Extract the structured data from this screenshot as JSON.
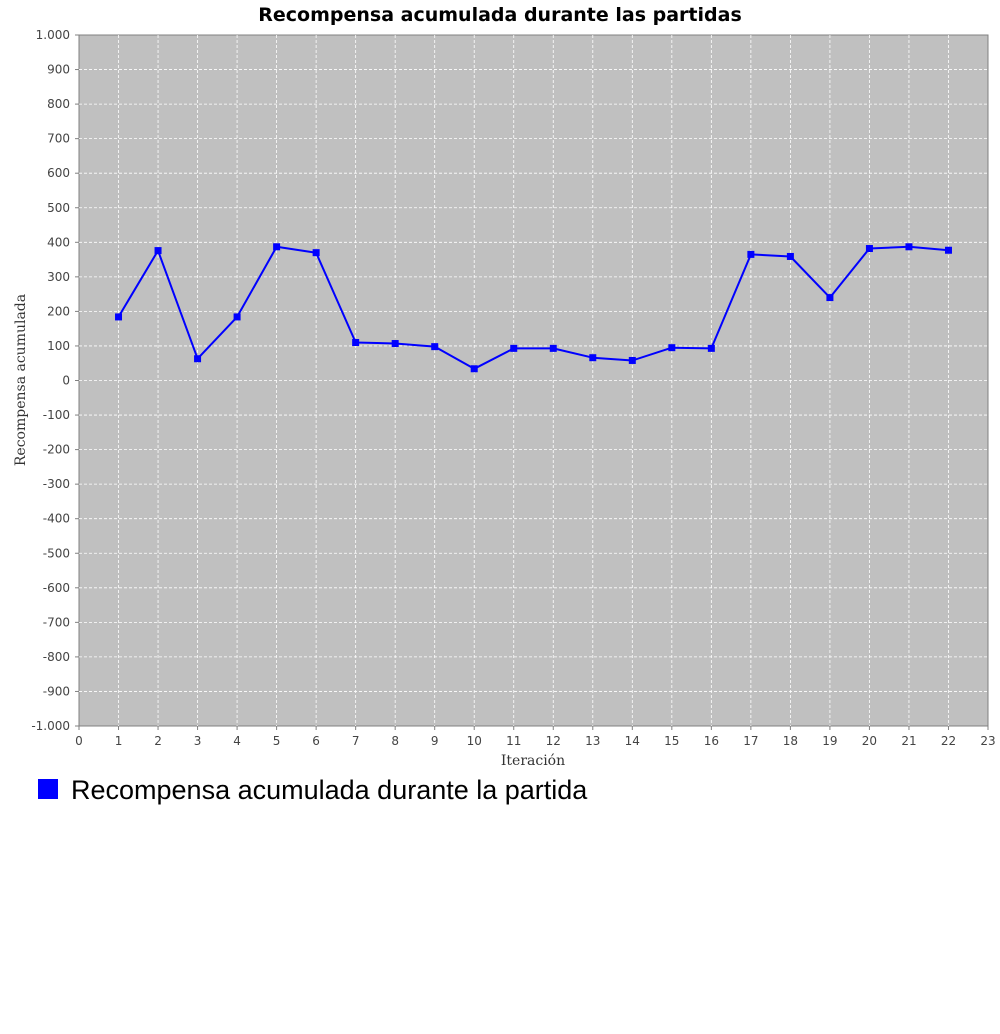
{
  "chart_data": {
    "type": "line",
    "title": "Recompensa acumulada durante las partidas",
    "xlabel": "Iteración",
    "ylabel": "Recompensa acumulada",
    "xlim": [
      0,
      23
    ],
    "ylim": [
      -1000,
      1000
    ],
    "x_ticks": [
      "0",
      "1",
      "2",
      "3",
      "4",
      "5",
      "6",
      "7",
      "8",
      "9",
      "10",
      "11",
      "12",
      "13",
      "14",
      "15",
      "16",
      "17",
      "18",
      "19",
      "20",
      "21",
      "22",
      "23"
    ],
    "y_ticks": [
      "-1.000",
      "-900",
      "-800",
      "-700",
      "-600",
      "-500",
      "-400",
      "-300",
      "-200",
      "-100",
      "0",
      "100",
      "200",
      "300",
      "400",
      "500",
      "600",
      "700",
      "800",
      "900",
      "1.000"
    ],
    "grid": true,
    "legend_position": "bottom-left",
    "plot_background": "#c0c0c0",
    "series": [
      {
        "name": "Recompensa acumulada durante la partida",
        "color": "#0000ff",
        "x": [
          1,
          2,
          3,
          4,
          5,
          6,
          7,
          8,
          9,
          10,
          11,
          12,
          13,
          14,
          15,
          16,
          17,
          18,
          19,
          20,
          21,
          22
        ],
        "values": [
          184,
          376,
          63,
          184,
          387,
          370,
          110,
          107,
          98,
          34,
          93,
          93,
          66,
          58,
          95,
          93,
          365,
          359,
          240,
          382,
          387,
          377
        ]
      }
    ]
  }
}
